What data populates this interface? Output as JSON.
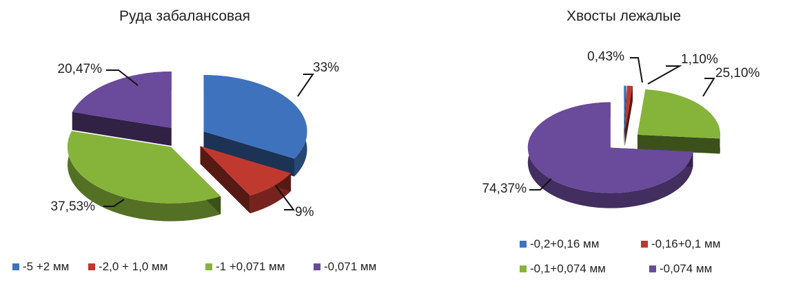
{
  "chart_data": [
    {
      "type": "pie",
      "style": "exploded 3d pie",
      "title": "Руда забалансовая",
      "legend_placement": "bottom",
      "slices": [
        {
          "name": "-5 +2 мм",
          "value": 33,
          "label": "33%",
          "color": "#3f72bd"
        },
        {
          "name": "-2,0 + 1,0 мм",
          "value": 9,
          "label": "9%",
          "color": "#c0392e"
        },
        {
          "name": "-1 +0,071 мм",
          "value": 37.53,
          "label": "37,53%",
          "color": "#86b43a"
        },
        {
          "name": "-0,071 мм",
          "value": 20.47,
          "label": "20,47%",
          "color": "#6a4a9a"
        }
      ]
    },
    {
      "type": "pie",
      "style": "exploded 3d pie",
      "title": "Хвосты лежалые",
      "legend_placement": "bottom",
      "slices": [
        {
          "name": "-0,2+0,16 мм",
          "value": 0.43,
          "label": "0,43%",
          "color": "#3f72bd"
        },
        {
          "name": "-0,16+0,1 мм",
          "value": 1.1,
          "label": "1,10%",
          "color": "#c0392e"
        },
        {
          "name": "-0,1+0,074 мм",
          "value": 25.1,
          "label": "25,10%",
          "color": "#86b43a"
        },
        {
          "name": "-0,074 мм",
          "value": 74.37,
          "label": "74,37%",
          "color": "#6a4a9a"
        }
      ]
    }
  ]
}
